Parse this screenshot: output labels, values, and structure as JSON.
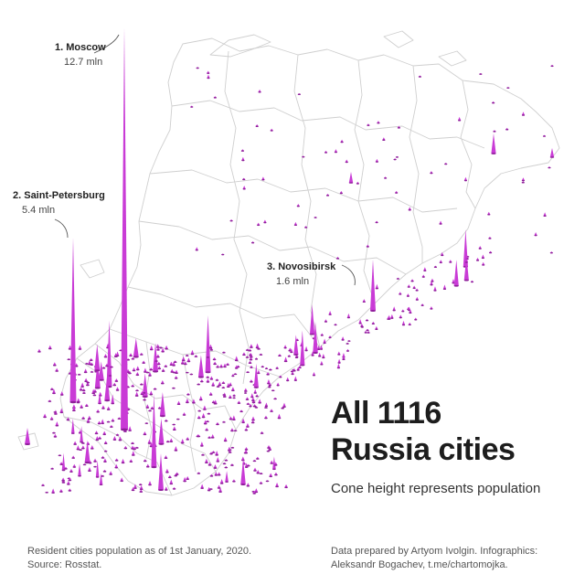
{
  "callouts": {
    "moscow": {
      "rank_name": "1. Moscow",
      "population": "12.7 mln"
    },
    "spb": {
      "rank_name": "2. Saint-Petersburg",
      "population": "5.4 mln"
    },
    "novosibirsk": {
      "rank_name": "3. Novosibirsk",
      "population": "1.6 mln"
    }
  },
  "title_lines": [
    "All 1116",
    "Russia cities"
  ],
  "subtitle": "Cone height represents population",
  "footer": {
    "left_lines": [
      "Resident cities population as of 1st January, 2020.",
      "Source: Rosstat."
    ],
    "right_lines": [
      "Data prepared by Artyom Ivolgin. Infographics:",
      "Aleksandr Bogachev, t.me/chartomojka."
    ]
  },
  "colors": {
    "cone": "#c93bd6",
    "cone_dark": "#8e1f99",
    "border": "#cfcfcf",
    "text": "#2b2b2b"
  }
}
